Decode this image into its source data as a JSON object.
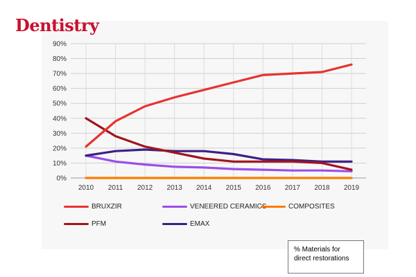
{
  "brand": {
    "logo_text": "Dentistry",
    "color": "#c8102e"
  },
  "chart_data": {
    "type": "line",
    "title": "",
    "xlabel": "",
    "ylabel": "",
    "x": [
      2010,
      2011,
      2012,
      2013,
      2014,
      2015,
      2016,
      2017,
      2018,
      2019
    ],
    "ylim": [
      0,
      90
    ],
    "yticks": [
      "0%",
      "10%",
      "20%",
      "30%",
      "40%",
      "50%",
      "60%",
      "70%",
      "80%",
      "90%"
    ],
    "grid": true,
    "legend_position": "bottom",
    "series": [
      {
        "name": "BRUXZIR",
        "color": "#e8322f",
        "values": [
          21,
          38,
          48,
          54,
          59,
          64,
          69,
          70,
          71,
          76
        ]
      },
      {
        "name": "VENEERED CERAMICS",
        "color": "#9b4dea",
        "values": [
          15,
          11,
          9,
          7.5,
          7,
          6,
          5.5,
          5,
          5,
          4.5
        ]
      },
      {
        "name": "COMPOSITES",
        "color": "#ff7a00",
        "values": [
          0,
          0,
          0,
          0,
          0,
          0,
          0,
          0,
          0,
          0
        ]
      },
      {
        "name": "PFM",
        "color": "#a3141c",
        "values": [
          40,
          28,
          21,
          17,
          13,
          11,
          11,
          11,
          10,
          5.5
        ]
      },
      {
        "name": "EMAX",
        "color": "#3b1f86",
        "values": [
          15,
          18,
          19,
          18,
          18,
          16,
          12.5,
          12,
          11,
          11
        ]
      }
    ]
  },
  "note": {
    "line1": "% Materials for",
    "line2": "direct restorations"
  }
}
